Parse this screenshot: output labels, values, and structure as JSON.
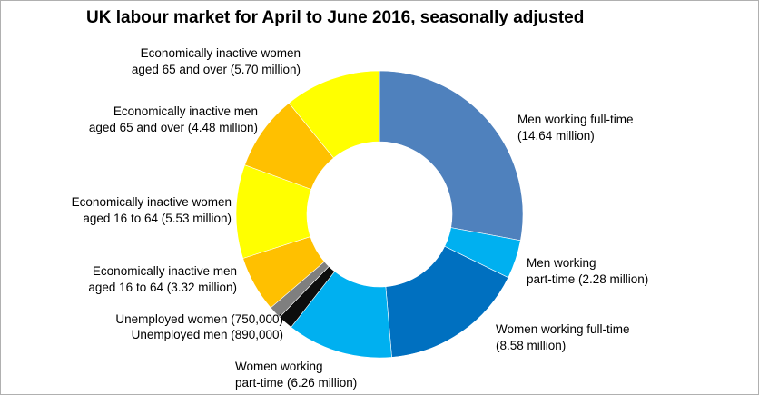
{
  "chart_data": {
    "type": "pie",
    "subtype": "donut",
    "title": "UK labour market for April to June 2016, seasonally adjusted",
    "slices": [
      {
        "label_lines": [
          "Men working full-time",
          "(14.64 million)"
        ],
        "value": 14.64,
        "color": "#4f81bd"
      },
      {
        "label_lines": [
          "Men working",
          "part-time (2.28 million)"
        ],
        "value": 2.28,
        "color": "#00b0f0"
      },
      {
        "label_lines": [
          "Women working full-time",
          "(8.58 million)"
        ],
        "value": 8.58,
        "color": "#0070c0"
      },
      {
        "label_lines": [
          "Women working",
          "part-time (6.26 million)"
        ],
        "value": 6.26,
        "color": "#00b0f0"
      },
      {
        "label_lines": [
          "Unemployed men (890,000)"
        ],
        "value": 0.89,
        "color": "#0d0d0d"
      },
      {
        "label_lines": [
          "Unemployed women (750,000)"
        ],
        "value": 0.75,
        "color": "#7f7f7f"
      },
      {
        "label_lines": [
          "Economically inactive men",
          "aged 16 to 64 (3.32 million)"
        ],
        "value": 3.32,
        "color": "#ffc000"
      },
      {
        "label_lines": [
          "Economically inactive women",
          "aged 16 to 64 (5.53 million)"
        ],
        "value": 5.53,
        "color": "#ffff00"
      },
      {
        "label_lines": [
          "Economically inactive men",
          "aged 65 and over (4.48 million)"
        ],
        "value": 4.48,
        "color": "#ffc000"
      },
      {
        "label_lines": [
          "Economically inactive women",
          "aged 65 and over (5.70 million)"
        ],
        "value": 5.7,
        "color": "#ffff00"
      }
    ],
    "start_angle": "12 o'clock",
    "direction": "clockwise",
    "legend": "none (direct labels)"
  }
}
